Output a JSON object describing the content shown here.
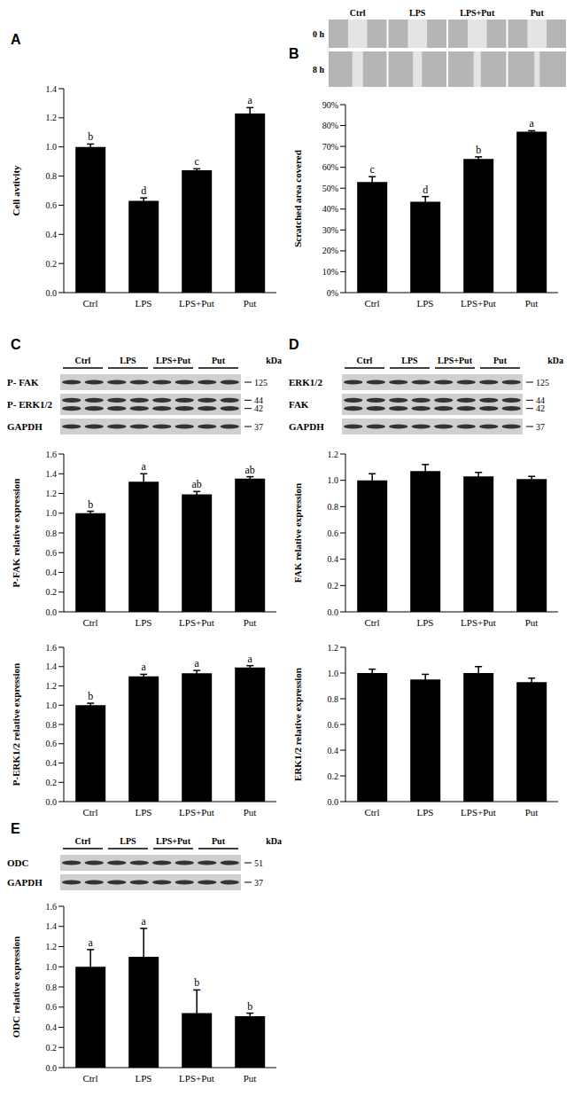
{
  "chart_data": [
    {
      "type": "bar",
      "categories": [
        "Ctrl",
        "LPS",
        "LPS+Put",
        "Put"
      ],
      "y_label": "Cell avtivity",
      "values": [
        1.0,
        0.63,
        0.84,
        1.23
      ],
      "errors": [
        0.02,
        0.02,
        0.01,
        0.04
      ],
      "letters": [
        "b",
        "d",
        "c",
        "a"
      ],
      "color": "#000000",
      "ylim": [
        0,
        1.4
      ],
      "yticks": [
        {
          "value": 0,
          "label": "0.0"
        },
        {
          "value": 0.2,
          "label": "0.2"
        },
        {
          "value": 0.4,
          "label": "0.4"
        },
        {
          "value": 0.6,
          "label": "0.6"
        },
        {
          "value": 0.8,
          "label": "0.8"
        },
        {
          "value": 1,
          "label": "1.0"
        },
        {
          "value": 1.2,
          "label": "1.2"
        },
        {
          "value": 1.4,
          "label": "1.4"
        }
      ]
    },
    {
      "type": "bar",
      "categories": [
        "Ctrl",
        "LPS",
        "LPS+Put",
        "Put"
      ],
      "y_label": "Scratched area covered",
      "values": [
        53,
        43.5,
        64,
        77
      ],
      "errors": [
        2.5,
        2.5,
        1,
        0.5
      ],
      "letters": [
        "c",
        "d",
        "b",
        "a"
      ],
      "color": "#000000",
      "ylim": [
        0,
        90
      ],
      "yticks": [
        {
          "value": 0,
          "label": "0%"
        },
        {
          "value": 10,
          "label": "10%"
        },
        {
          "value": 20,
          "label": "20%"
        },
        {
          "value": 30,
          "label": "30%"
        },
        {
          "value": 40,
          "label": "40%"
        },
        {
          "value": 50,
          "label": "50%"
        },
        {
          "value": 60,
          "label": "60%"
        },
        {
          "value": 70,
          "label": "70%"
        },
        {
          "value": 80,
          "label": "80%"
        },
        {
          "value": 90,
          "label": "90%"
        }
      ]
    },
    {
      "type": "bar",
      "categories": [
        "Ctrl",
        "LPS",
        "LPS+Put",
        "Put"
      ],
      "y_label": "P-FAK relative expression",
      "values": [
        1.0,
        1.32,
        1.19,
        1.35
      ],
      "errors": [
        0.02,
        0.08,
        0.03,
        0.02
      ],
      "letters": [
        "b",
        "a",
        "ab",
        "ab"
      ],
      "color": "#000000",
      "ylim": [
        0,
        1.6
      ],
      "yticks": [
        {
          "value": 0,
          "label": "0.0"
        },
        {
          "value": 0.2,
          "label": "0.2"
        },
        {
          "value": 0.4,
          "label": "0.4"
        },
        {
          "value": 0.6,
          "label": "0.6"
        },
        {
          "value": 0.8,
          "label": "0.8"
        },
        {
          "value": 1,
          "label": "1.0"
        },
        {
          "value": 1.2,
          "label": "1.2"
        },
        {
          "value": 1.4,
          "label": "1.4"
        },
        {
          "value": 1.6,
          "label": "1.6"
        }
      ]
    },
    {
      "type": "bar",
      "categories": [
        "Ctrl",
        "LPS",
        "LPS+Put",
        "Put"
      ],
      "y_label": "P-ERK1/2 relative expression",
      "values": [
        1.0,
        1.3,
        1.33,
        1.39
      ],
      "errors": [
        0.02,
        0.02,
        0.03,
        0.02
      ],
      "letters": [
        "b",
        "a",
        "a",
        "a"
      ],
      "color": "#000000",
      "ylim": [
        0,
        1.6
      ],
      "yticks": [
        {
          "value": 0,
          "label": "0.0"
        },
        {
          "value": 0.2,
          "label": "0.2"
        },
        {
          "value": 0.4,
          "label": "0.4"
        },
        {
          "value": 0.6,
          "label": "0.6"
        },
        {
          "value": 0.8,
          "label": "0.8"
        },
        {
          "value": 1,
          "label": "1.0"
        },
        {
          "value": 1.2,
          "label": "1.2"
        },
        {
          "value": 1.4,
          "label": "1.4"
        },
        {
          "value": 1.6,
          "label": "1.6"
        }
      ]
    },
    {
      "type": "bar",
      "categories": [
        "Ctrl",
        "LPS",
        "LPS+Put",
        "Put"
      ],
      "y_label": "FAK relative expression",
      "values": [
        1.0,
        1.07,
        1.03,
        1.01
      ],
      "errors": [
        0.05,
        0.05,
        0.03,
        0.02
      ],
      "color": "#000000",
      "ylim": [
        0,
        1.2
      ],
      "yticks": [
        {
          "value": 0,
          "label": "0.0"
        },
        {
          "value": 0.2,
          "label": "0.2"
        },
        {
          "value": 0.4,
          "label": "0.4"
        },
        {
          "value": 0.6,
          "label": "0.6"
        },
        {
          "value": 0.8,
          "label": "0.8"
        },
        {
          "value": 1,
          "label": "1.0"
        },
        {
          "value": 1.2,
          "label": "1.2"
        }
      ]
    },
    {
      "type": "bar",
      "categories": [
        "Ctrl",
        "LPS",
        "LPS+Put",
        "Put"
      ],
      "y_label": "ERK1/2 relative expression",
      "values": [
        1.0,
        0.95,
        1.0,
        0.93
      ],
      "errors": [
        0.03,
        0.04,
        0.05,
        0.03
      ],
      "color": "#000000",
      "ylim": [
        0,
        1.2
      ],
      "yticks": [
        {
          "value": 0,
          "label": "0.0"
        },
        {
          "value": 0.2,
          "label": "0.2"
        },
        {
          "value": 0.4,
          "label": "0.4"
        },
        {
          "value": 0.6,
          "label": "0.6"
        },
        {
          "value": 0.8,
          "label": "0.8"
        },
        {
          "value": 1,
          "label": "1.0"
        },
        {
          "value": 1.2,
          "label": "1.2"
        }
      ]
    },
    {
      "type": "bar",
      "categories": [
        "Ctrl",
        "LPS",
        "LPS+Put",
        "Put"
      ],
      "y_label": "ODC relative expression",
      "values": [
        1.0,
        1.1,
        0.54,
        0.51
      ],
      "errors": [
        0.17,
        0.28,
        0.23,
        0.03
      ],
      "letters": [
        "a",
        "a",
        "b",
        "b"
      ],
      "color": "#000000",
      "ylim": [
        0,
        1.6
      ],
      "yticks": [
        {
          "value": 0,
          "label": "0.0"
        },
        {
          "value": 0.2,
          "label": "0.2"
        },
        {
          "value": 0.4,
          "label": "0.4"
        },
        {
          "value": 0.6,
          "label": "0.6"
        },
        {
          "value": 0.8,
          "label": "0.8"
        },
        {
          "value": 1,
          "label": "1.0"
        },
        {
          "value": 1.2,
          "label": "1.2"
        },
        {
          "value": 1.4,
          "label": "1.4"
        },
        {
          "value": 1.6,
          "label": "1.6"
        }
      ]
    }
  ],
  "figure": {
    "panels": [
      {
        "label": "A"
      },
      {
        "label": "B",
        "images": {
          "columns": [
            "Ctrl",
            "LPS",
            "LPS+Put",
            "Put"
          ],
          "rows": [
            "0 h",
            "8 h"
          ]
        }
      },
      {
        "label": "C",
        "blot": {
          "lanes": [
            "Ctrl",
            "LPS",
            "LPS+Put",
            "Put"
          ],
          "kda_header": "kDa",
          "rows": [
            {
              "label": "P- FAK",
              "kda": [
                125
              ]
            },
            {
              "label": "P- ERK1/2",
              "kda": [
                44,
                42
              ]
            },
            {
              "label": "GAPDH",
              "kda": [
                37
              ]
            }
          ]
        }
      },
      {
        "label": "D",
        "blot": {
          "lanes": [
            "Ctrl",
            "LPS",
            "LPS+Put",
            "Put"
          ],
          "kda_header": "kDa",
          "rows": [
            {
              "label": "ERK1/2",
              "kda": [
                125
              ]
            },
            {
              "label": "FAK",
              "kda": [
                44,
                42
              ]
            },
            {
              "label": "GAPDH",
              "kda": [
                37
              ]
            }
          ]
        }
      },
      {
        "label": "E",
        "blot": {
          "lanes": [
            "Ctrl",
            "LPS",
            "LPS+Put",
            "Put"
          ],
          "kda_header": "kDa",
          "rows": [
            {
              "label": "ODC",
              "kda": [
                51
              ]
            },
            {
              "label": "GAPDH",
              "kda": [
                37
              ]
            }
          ]
        }
      }
    ]
  }
}
